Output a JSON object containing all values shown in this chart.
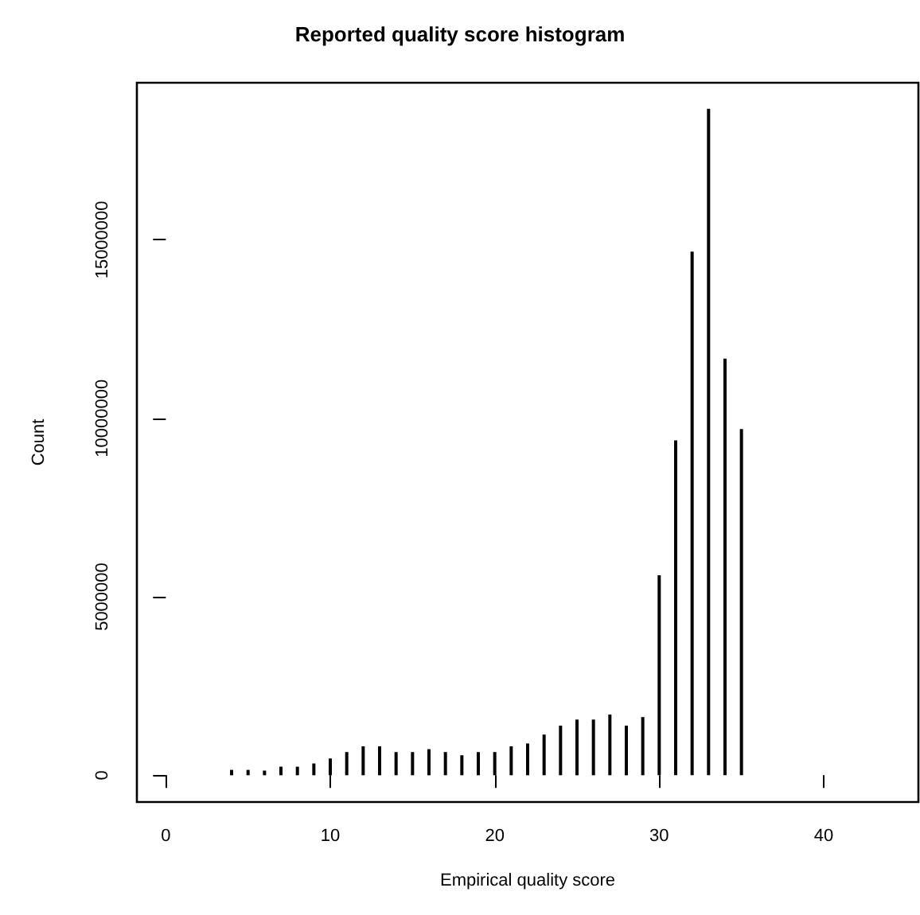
{
  "chart_data": {
    "type": "bar",
    "title": "Reported quality score histogram",
    "xlabel": "Empirical quality score",
    "ylabel": "Count",
    "x": [
      4,
      5,
      6,
      7,
      8,
      9,
      10,
      11,
      12,
      13,
      14,
      15,
      16,
      17,
      18,
      19,
      20,
      21,
      22,
      23,
      24,
      25,
      26,
      27,
      28,
      29,
      30,
      31,
      32,
      33,
      34,
      35
    ],
    "values": [
      150000,
      150000,
      130000,
      240000,
      240000,
      330000,
      470000,
      650000,
      810000,
      810000,
      650000,
      650000,
      730000,
      650000,
      560000,
      650000,
      650000,
      810000,
      890000,
      1140000,
      1390000,
      1560000,
      1560000,
      1700000,
      1390000,
      1630000,
      5600000,
      9380000,
      14670000,
      18670000,
      11670000,
      9700000
    ],
    "color": "#000000",
    "xlim": [
      -1.76,
      45.76
    ],
    "xticks": [
      0,
      10,
      20,
      30,
      40
    ],
    "ylim": [
      -750000,
      19400000
    ],
    "yticks": [
      0,
      5000000,
      10000000,
      15000000
    ],
    "grid": false
  }
}
